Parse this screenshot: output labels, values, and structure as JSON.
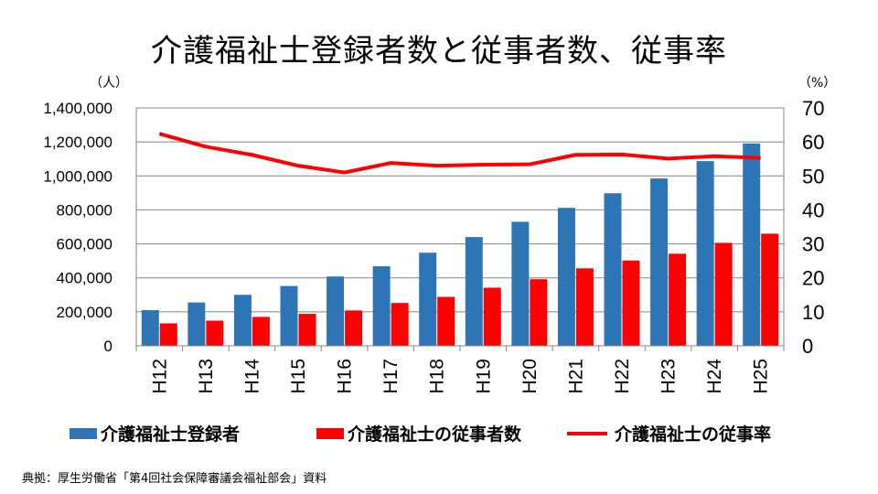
{
  "chart_data": {
    "type": "bar",
    "title": "介護福祉士登録者数と従事者数、従事率",
    "categories": [
      "H12",
      "H13",
      "H14",
      "H15",
      "H16",
      "H17",
      "H18",
      "H19",
      "H20",
      "H21",
      "H22",
      "H23",
      "H24",
      "H25"
    ],
    "series": [
      {
        "name": "介護福祉士登録者",
        "type": "bar",
        "axis": "left",
        "color": "#2e75b6",
        "values": [
          210000,
          255000,
          300000,
          352000,
          408000,
          468000,
          548000,
          640000,
          730000,
          812000,
          898000,
          985000,
          1087000,
          1191000
        ]
      },
      {
        "name": "介護福祉士の従事者数",
        "type": "bar",
        "axis": "left",
        "color": "#ff0000",
        "values": [
          132000,
          148000,
          170000,
          188000,
          208000,
          252000,
          288000,
          342000,
          392000,
          456000,
          502000,
          542000,
          606000,
          660000
        ]
      },
      {
        "name": "介護福祉士の従事率",
        "type": "line",
        "axis": "right",
        "color": "#ff0000",
        "values": [
          62.4,
          58.6,
          56.2,
          53.0,
          51.0,
          53.8,
          53.0,
          53.3,
          53.4,
          56.2,
          56.3,
          55.1,
          55.8,
          55.3
        ]
      }
    ],
    "left_axis": {
      "unit": "（人）",
      "ylim": [
        0,
        1400000
      ],
      "tick_labels": [
        "0",
        "200,000",
        "400,000",
        "600,000",
        "800,000",
        "1,000,000",
        "1,200,000",
        "1,400,000"
      ]
    },
    "right_axis": {
      "unit": "（%）",
      "ylim": [
        0,
        70
      ],
      "tick_labels": [
        "0",
        "10",
        "20",
        "30",
        "40",
        "50",
        "60",
        "70"
      ]
    },
    "grid": true,
    "legend_position": "bottom"
  },
  "source_note": "典拠：厚生労働省「第4回社会保障審議会福祉部会」資料"
}
